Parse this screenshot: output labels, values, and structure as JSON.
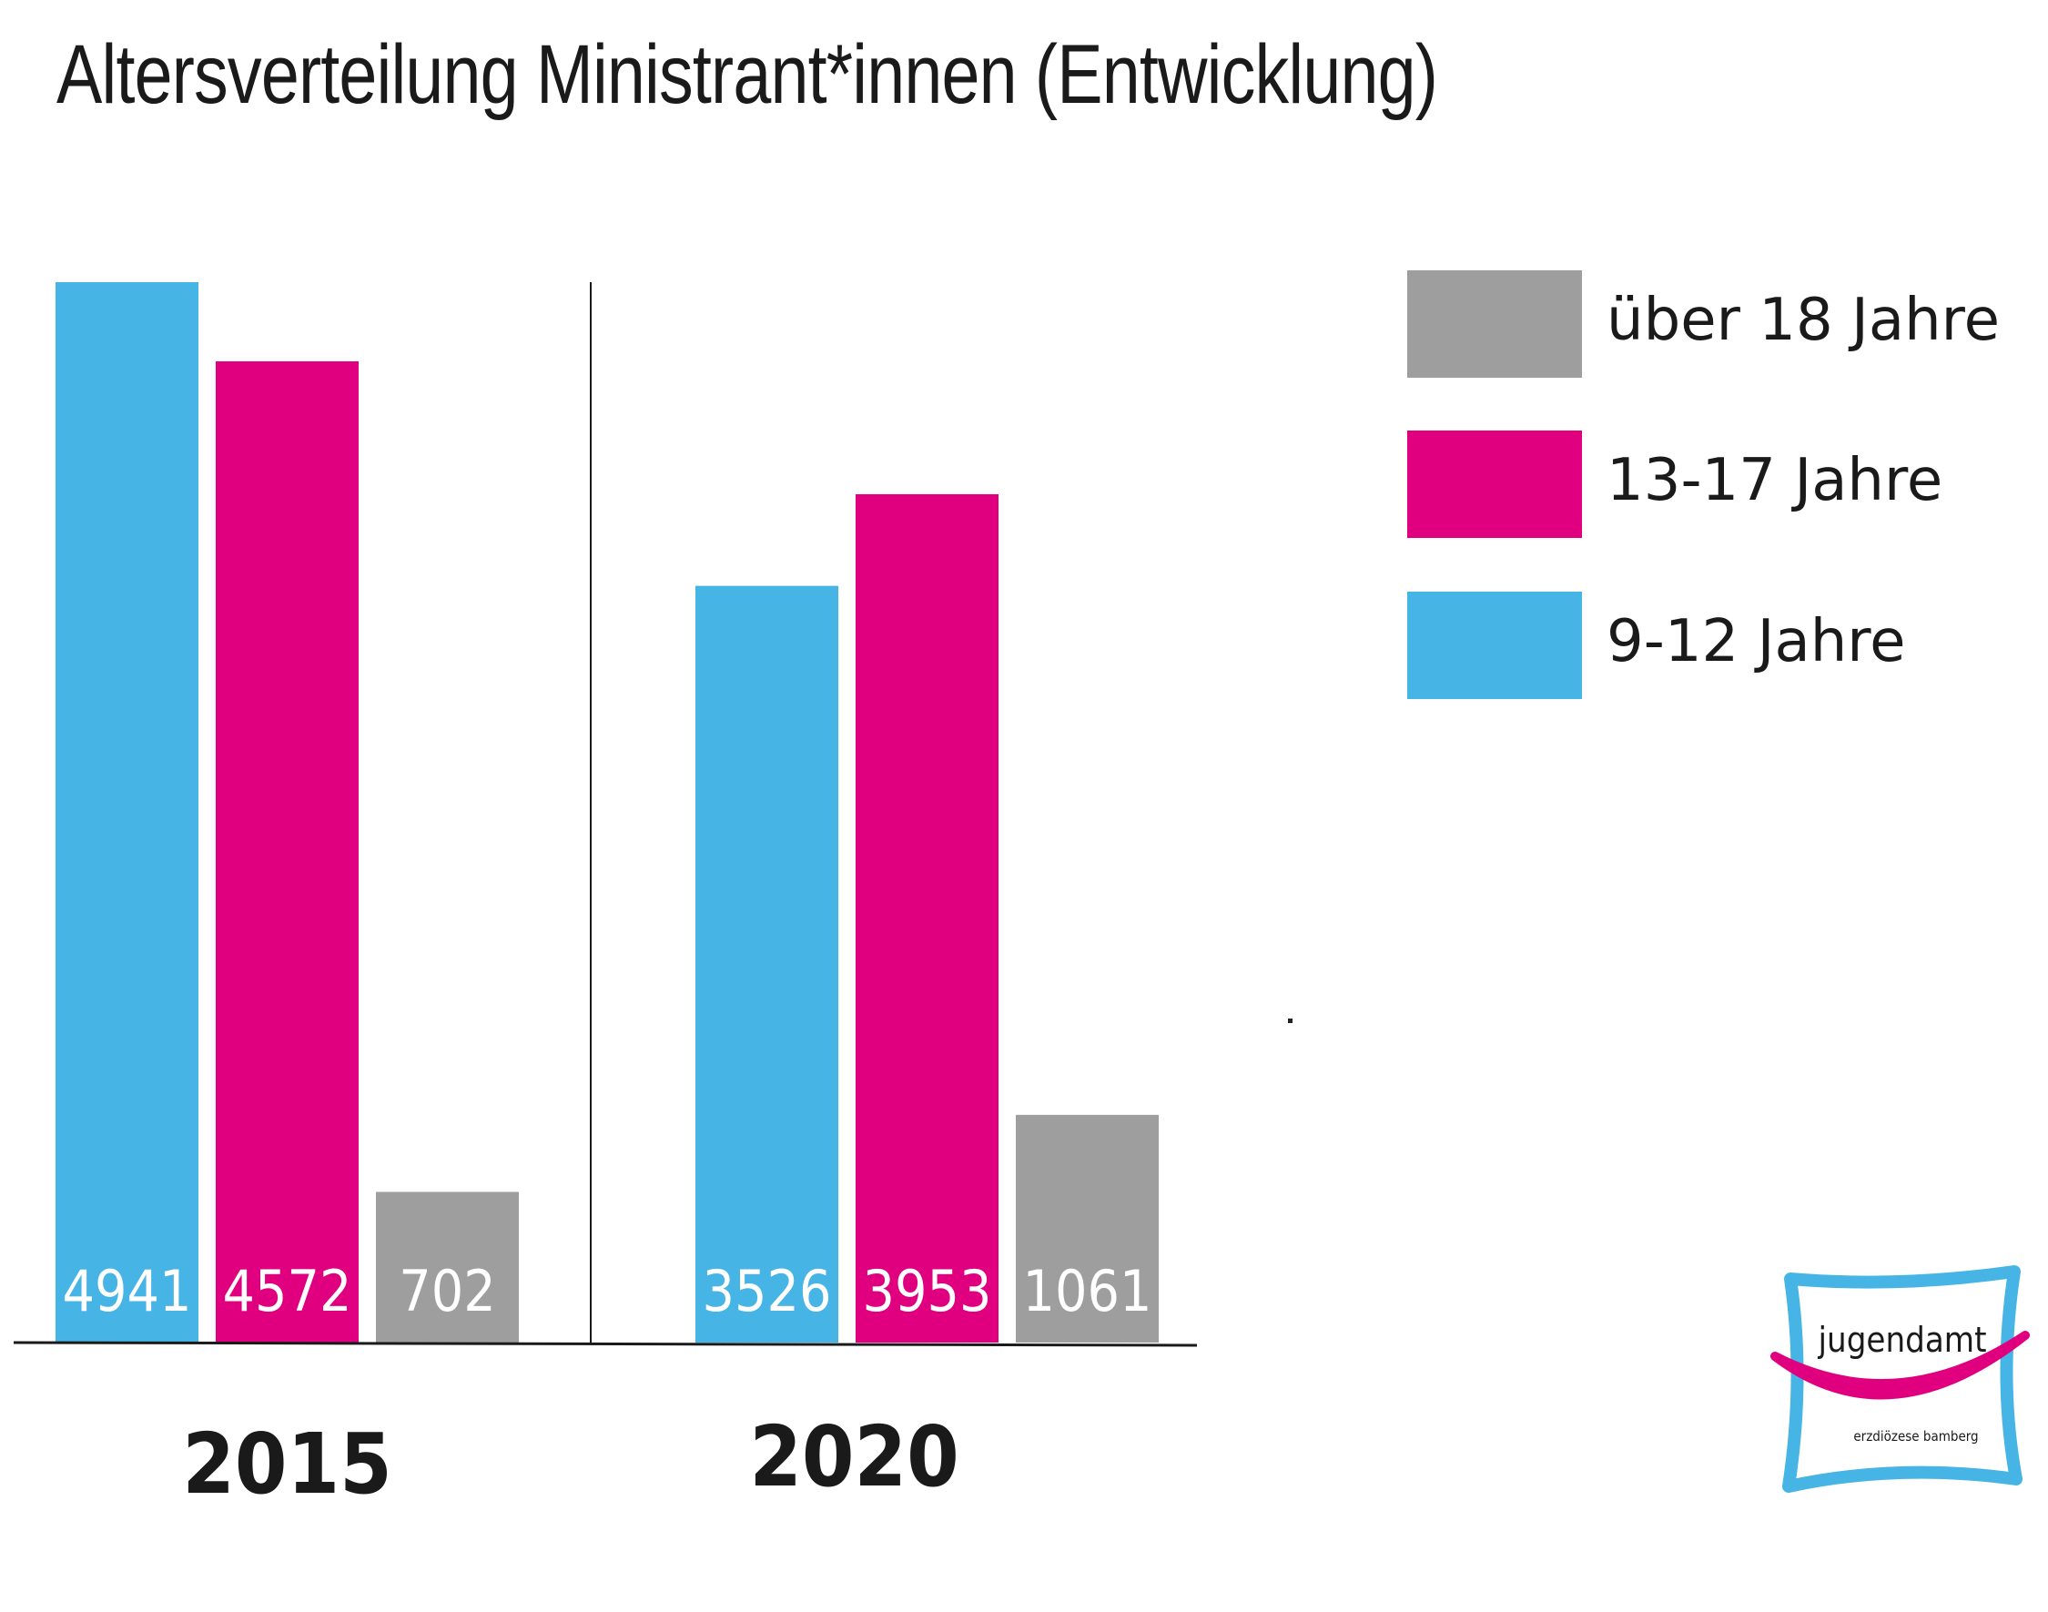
{
  "title": "Altersverteilung Ministrant*innen (Entwicklung)",
  "colors": {
    "9-12": "#47b4e6",
    "13-17": "#e0007f",
    "18plus": "#9e9e9e",
    "axis": "#1a1a1a",
    "text": "#1a1a1a",
    "label_text": "#ffffff"
  },
  "legend": [
    {
      "label": "über 18 Jahre",
      "color": "#9e9e9e"
    },
    {
      "label": "13-17 Jahre",
      "color": "#e0007f"
    },
    {
      "label": "9-12 Jahre",
      "color": "#47b4e6"
    }
  ],
  "logo": {
    "name": "jugendamt",
    "subtitle": "erzdiözese bamberg"
  },
  "chart_data": {
    "type": "bar",
    "title": "Altersverteilung Ministrant*innen (Entwicklung)",
    "categories": [
      "2015",
      "2020"
    ],
    "series": [
      {
        "name": "9-12 Jahre",
        "color": "#47b4e6",
        "values": [
          4941,
          3526
        ]
      },
      {
        "name": "13-17 Jahre",
        "color": "#e0007f",
        "values": [
          4572,
          3953
        ]
      },
      {
        "name": "über 18 Jahre",
        "color": "#9e9e9e",
        "values": [
          702,
          1061
        ]
      }
    ],
    "data_labels": [
      [
        "4941",
        "4572",
        "702"
      ],
      [
        "3526",
        "3953",
        "1061"
      ]
    ],
    "xlabel": "",
    "ylabel": "",
    "ylim": [
      0,
      4941
    ],
    "grid": false,
    "legend_position": "top-right"
  }
}
